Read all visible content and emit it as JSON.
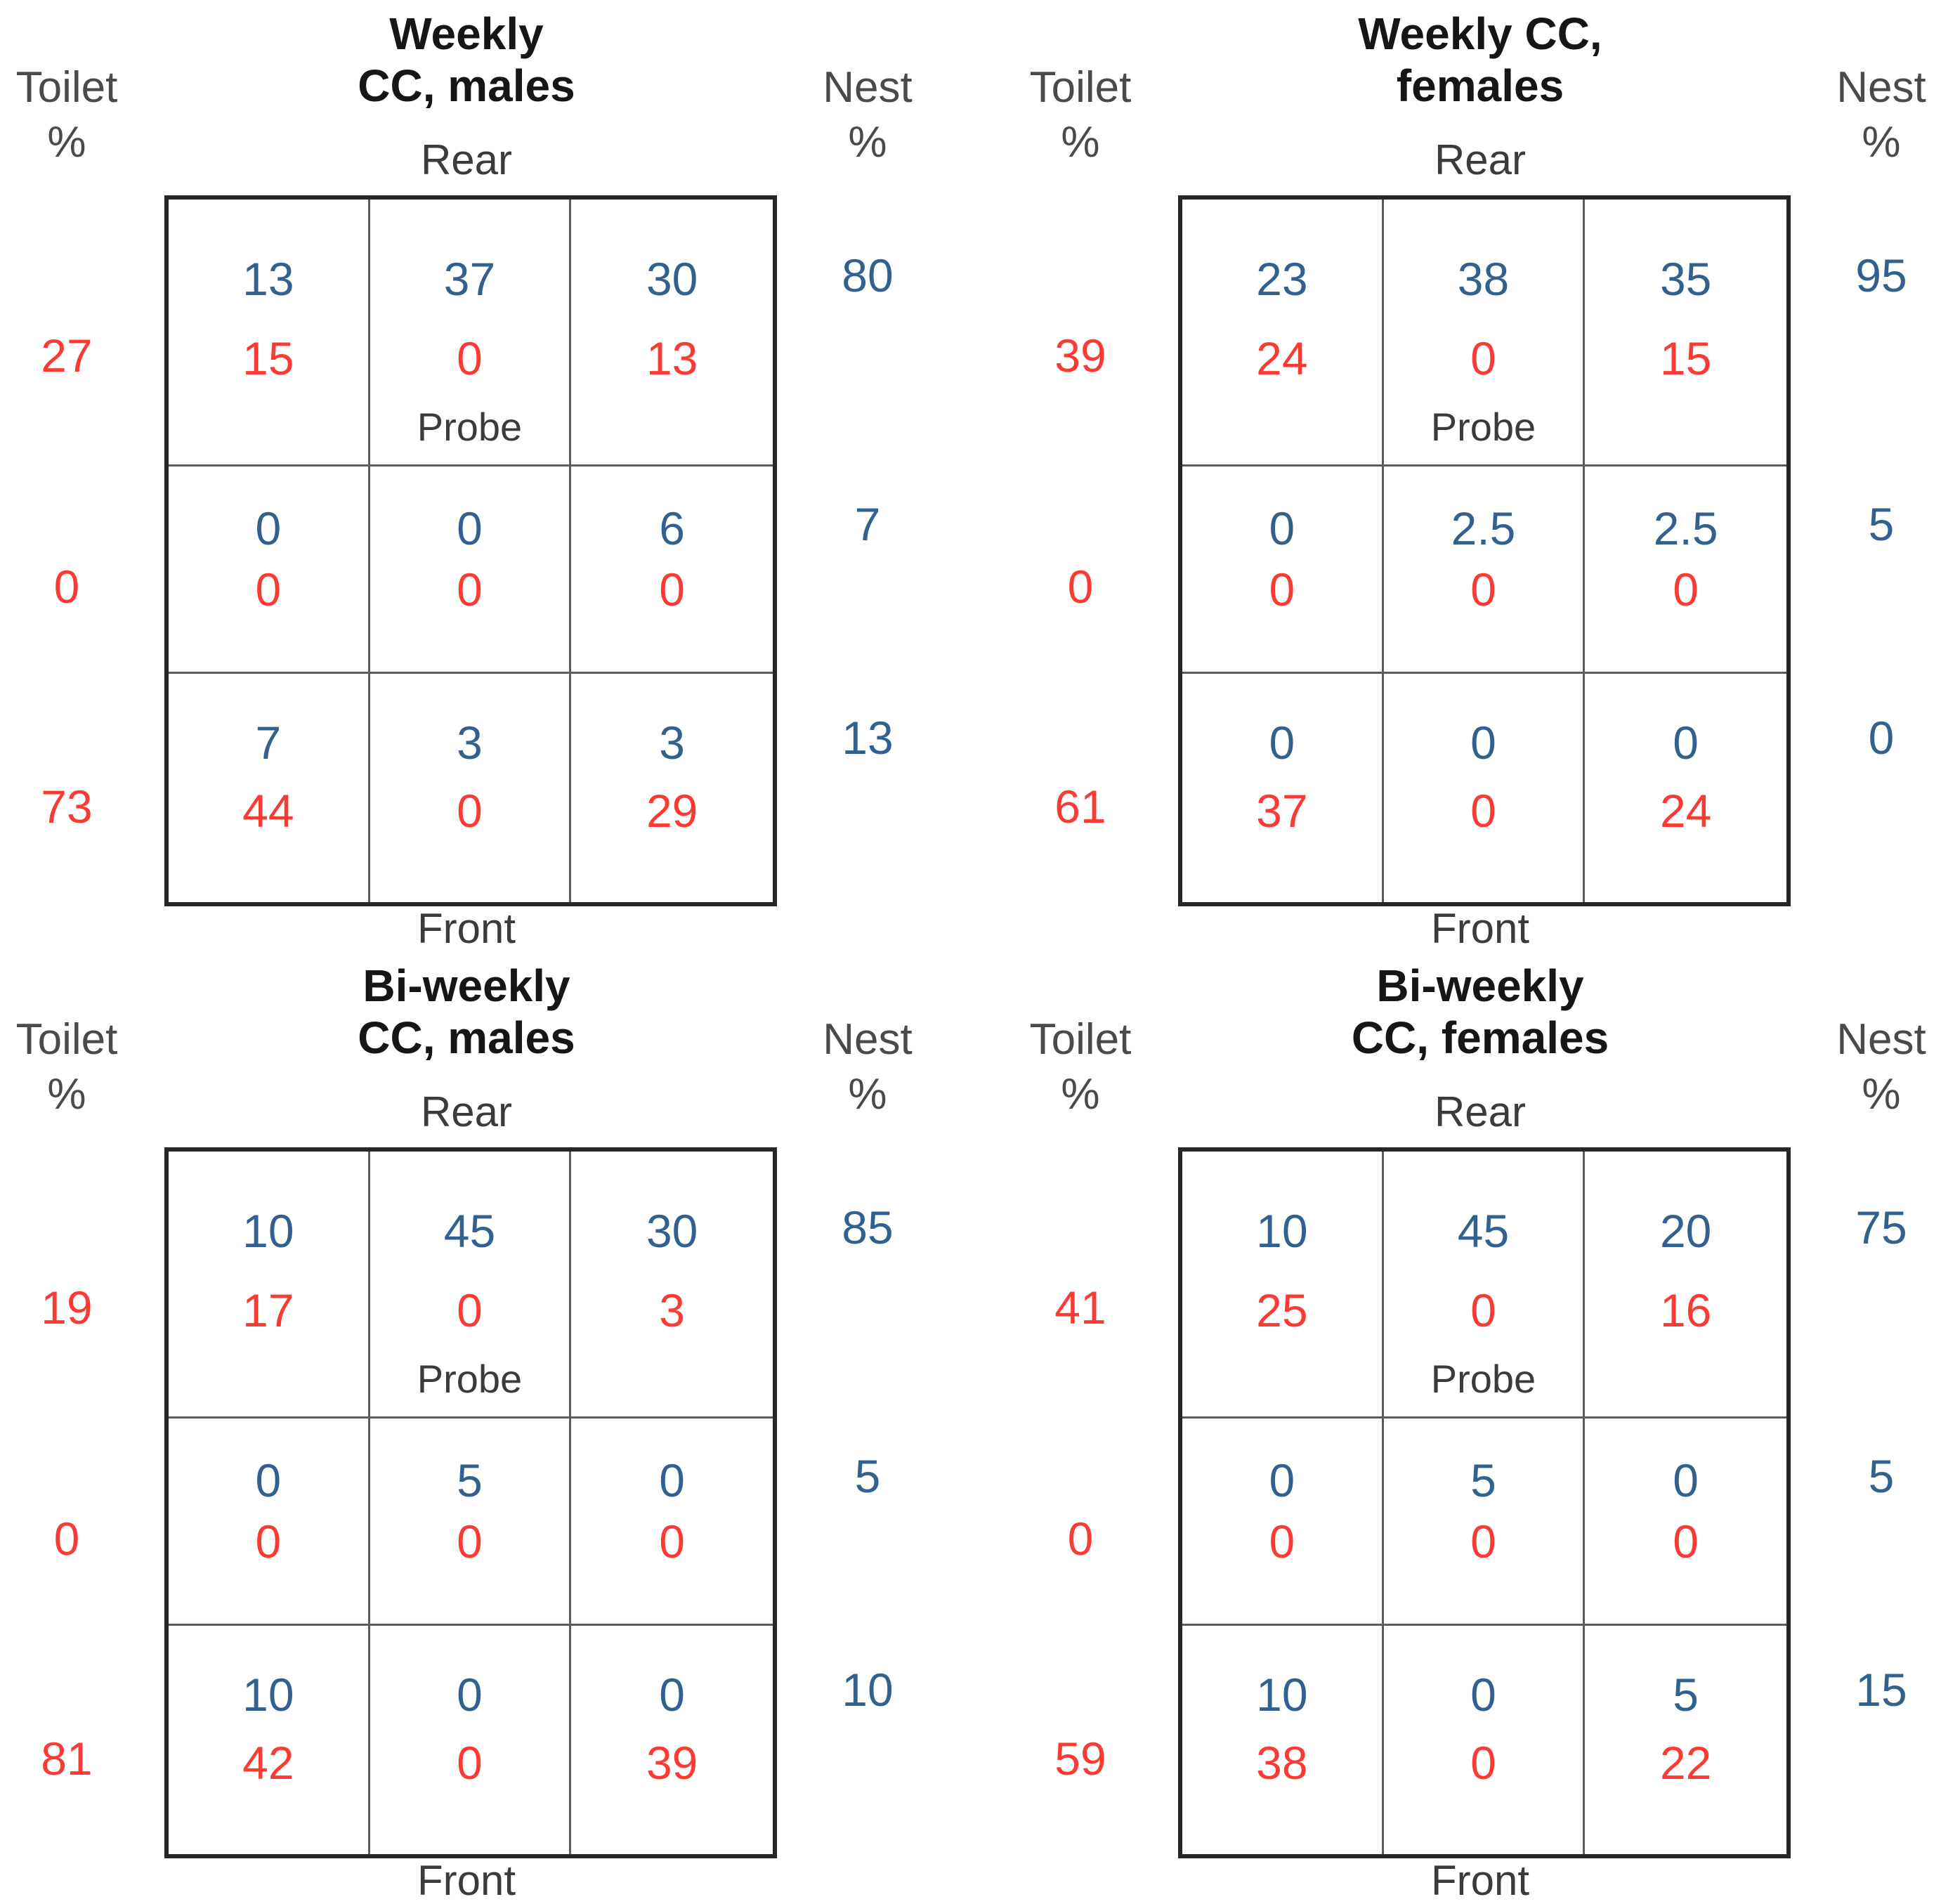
{
  "labels": {
    "toilet_line1": "Toilet",
    "toilet_line2": "%",
    "nest_line1": "Nest",
    "nest_line2": "%",
    "rear": "Rear",
    "front": "Front",
    "probe": "Probe"
  },
  "colors": {
    "blue": "#33618F",
    "red": "#FA3B33",
    "header_gray": "#4A4A4A",
    "orientation_gray": "#3B3B3B",
    "title_black": "#161616",
    "outer_border": "#262626",
    "inner_border": "#5C5C5C",
    "background": "#FFFFFF"
  },
  "panels": [
    {
      "id": "weekly-cc-males",
      "title_line1": "Weekly",
      "title_line2": "CC, males",
      "toilet_pct": [
        "27",
        "0",
        "73"
      ],
      "nest_pct": [
        "80",
        "7",
        "13"
      ],
      "rows": [
        {
          "cells": [
            {
              "blue": "13",
              "red": "15"
            },
            {
              "blue": "37",
              "red": "0"
            },
            {
              "blue": "30",
              "red": "13"
            }
          ]
        },
        {
          "cells": [
            {
              "blue": "0",
              "red": "0"
            },
            {
              "blue": "0",
              "red": "0"
            },
            {
              "blue": "6",
              "red": "0"
            }
          ]
        },
        {
          "cells": [
            {
              "blue": "7",
              "red": "44"
            },
            {
              "blue": "3",
              "red": "0"
            },
            {
              "blue": "3",
              "red": "29"
            }
          ]
        }
      ]
    },
    {
      "id": "weekly-cc-females",
      "title_line1": "Weekly CC,",
      "title_line2": "females",
      "toilet_pct": [
        "39",
        "0",
        "61"
      ],
      "nest_pct": [
        "95",
        "5",
        "0"
      ],
      "rows": [
        {
          "cells": [
            {
              "blue": "23",
              "red": "24"
            },
            {
              "blue": "38",
              "red": "0"
            },
            {
              "blue": "35",
              "red": "15"
            }
          ]
        },
        {
          "cells": [
            {
              "blue": "0",
              "red": "0"
            },
            {
              "blue": "2.5",
              "red": "0"
            },
            {
              "blue": "2.5",
              "red": "0"
            }
          ]
        },
        {
          "cells": [
            {
              "blue": "0",
              "red": "37"
            },
            {
              "blue": "0",
              "red": "0"
            },
            {
              "blue": "0",
              "red": "24"
            }
          ]
        }
      ]
    },
    {
      "id": "bi-weekly-cc-males",
      "title_line1": "Bi-weekly",
      "title_line2": "CC, males",
      "toilet_pct": [
        "19",
        "0",
        "81"
      ],
      "nest_pct": [
        "85",
        "5",
        "10"
      ],
      "rows": [
        {
          "cells": [
            {
              "blue": "10",
              "red": "17"
            },
            {
              "blue": "45",
              "red": "0"
            },
            {
              "blue": "30",
              "red": "3"
            }
          ]
        },
        {
          "cells": [
            {
              "blue": "0",
              "red": "0"
            },
            {
              "blue": "5",
              "red": "0"
            },
            {
              "blue": "0",
              "red": "0"
            }
          ]
        },
        {
          "cells": [
            {
              "blue": "10",
              "red": "42"
            },
            {
              "blue": "0",
              "red": "0"
            },
            {
              "blue": "0",
              "red": "39"
            }
          ]
        }
      ]
    },
    {
      "id": "bi-weekly-cc-females",
      "title_line1": "Bi-weekly",
      "title_line2": "CC, females",
      "toilet_pct": [
        "41",
        "0",
        "59"
      ],
      "nest_pct": [
        "75",
        "5",
        "15"
      ],
      "rows": [
        {
          "cells": [
            {
              "blue": "10",
              "red": "25"
            },
            {
              "blue": "45",
              "red": "0"
            },
            {
              "blue": "20",
              "red": "16"
            }
          ]
        },
        {
          "cells": [
            {
              "blue": "0",
              "red": "0"
            },
            {
              "blue": "5",
              "red": "0"
            },
            {
              "blue": "0",
              "red": "0"
            }
          ]
        },
        {
          "cells": [
            {
              "blue": "10",
              "red": "38"
            },
            {
              "blue": "0",
              "red": "0"
            },
            {
              "blue": "5",
              "red": "22"
            }
          ]
        }
      ]
    }
  ],
  "chart_data": [
    {
      "type": "table",
      "title": "Weekly CC, males",
      "orientation_top": "Rear",
      "orientation_bottom": "Front",
      "probe_location": "row 1, middle column",
      "toilet_pct_by_row": [
        27,
        0,
        73
      ],
      "nest_pct_by_row": [
        80,
        7,
        13
      ],
      "grid_blue_values": [
        [
          13,
          37,
          30
        ],
        [
          0,
          0,
          6
        ],
        [
          7,
          3,
          3
        ]
      ],
      "grid_red_values": [
        [
          15,
          0,
          13
        ],
        [
          0,
          0,
          0
        ],
        [
          44,
          0,
          29
        ]
      ]
    },
    {
      "type": "table",
      "title": "Weekly CC, females",
      "orientation_top": "Rear",
      "orientation_bottom": "Front",
      "probe_location": "row 1, middle column",
      "toilet_pct_by_row": [
        39,
        0,
        61
      ],
      "nest_pct_by_row": [
        95,
        5,
        0
      ],
      "grid_blue_values": [
        [
          23,
          38,
          35
        ],
        [
          0,
          2.5,
          2.5
        ],
        [
          0,
          0,
          0
        ]
      ],
      "grid_red_values": [
        [
          24,
          0,
          15
        ],
        [
          0,
          0,
          0
        ],
        [
          37,
          0,
          24
        ]
      ]
    },
    {
      "type": "table",
      "title": "Bi-weekly CC, males",
      "orientation_top": "Rear",
      "orientation_bottom": "Front",
      "probe_location": "row 1, middle column",
      "toilet_pct_by_row": [
        19,
        0,
        81
      ],
      "nest_pct_by_row": [
        85,
        5,
        10
      ],
      "grid_blue_values": [
        [
          10,
          45,
          30
        ],
        [
          0,
          5,
          0
        ],
        [
          10,
          0,
          0
        ]
      ],
      "grid_red_values": [
        [
          17,
          0,
          3
        ],
        [
          0,
          0,
          0
        ],
        [
          42,
          0,
          39
        ]
      ]
    },
    {
      "type": "table",
      "title": "Bi-weekly CC, females",
      "orientation_top": "Rear",
      "orientation_bottom": "Front",
      "probe_location": "row 1, middle column",
      "toilet_pct_by_row": [
        41,
        0,
        59
      ],
      "nest_pct_by_row": [
        75,
        5,
        15
      ],
      "grid_blue_values": [
        [
          10,
          45,
          20
        ],
        [
          0,
          5,
          0
        ],
        [
          10,
          0,
          5
        ]
      ],
      "grid_red_values": [
        [
          25,
          0,
          16
        ],
        [
          0,
          0,
          0
        ],
        [
          38,
          0,
          22
        ]
      ]
    }
  ]
}
